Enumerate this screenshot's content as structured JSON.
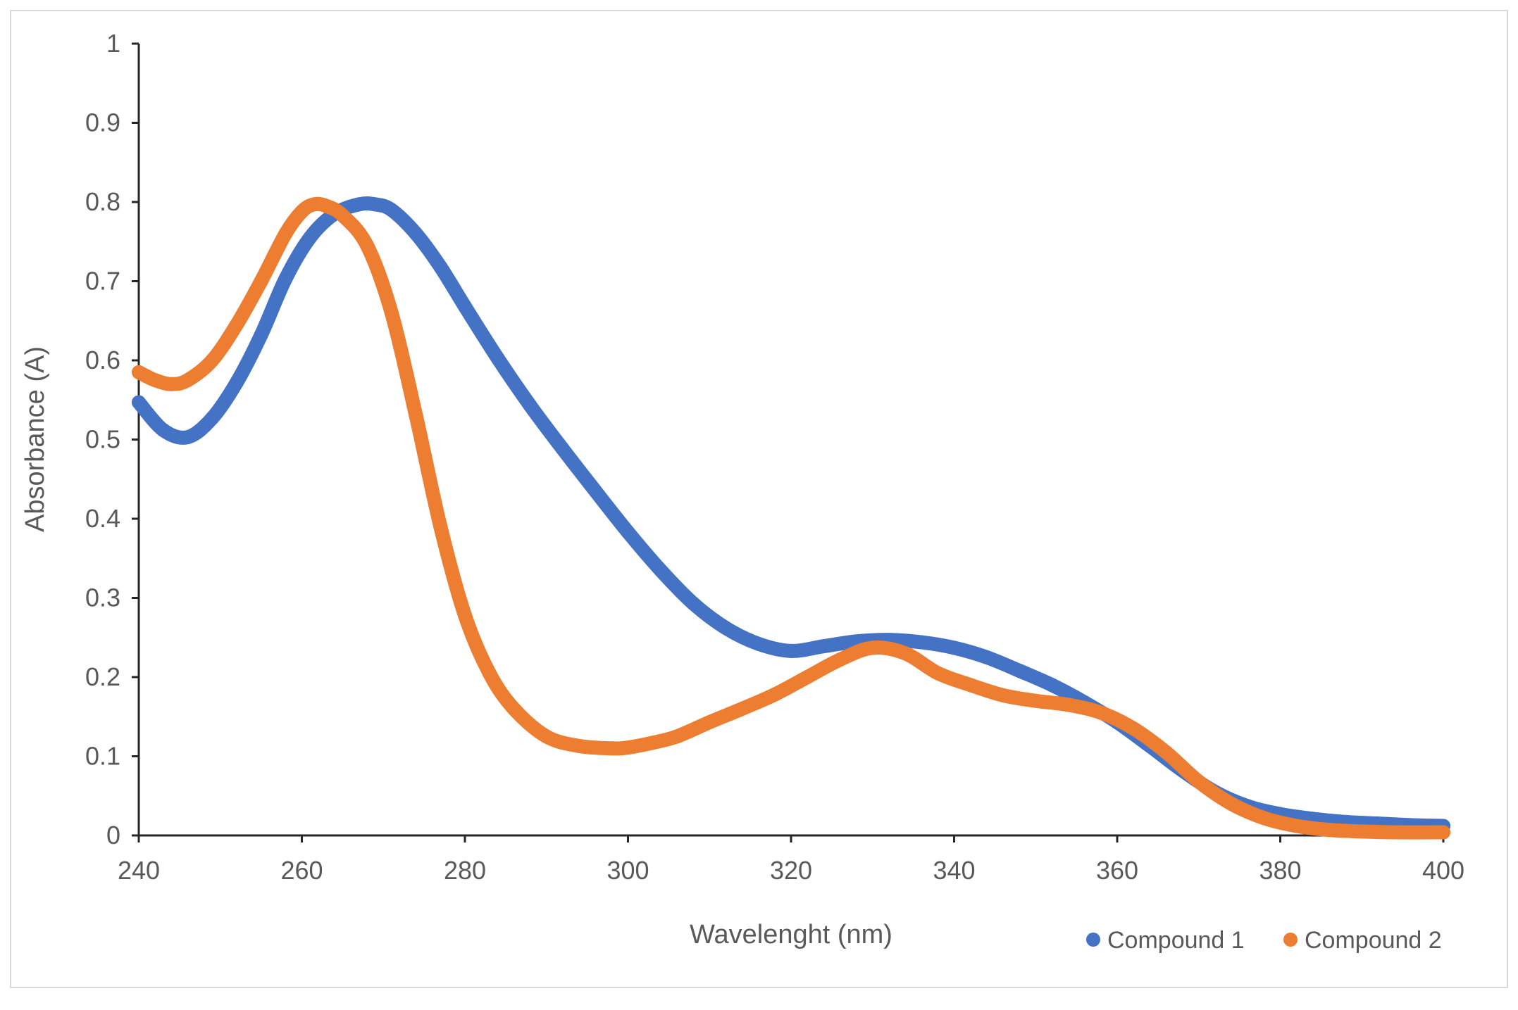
{
  "chart_data": {
    "type": "line",
    "title": "",
    "xlabel": "Wavelenght (nm)",
    "ylabel": "Absorbance (A)",
    "xlim": [
      240,
      400
    ],
    "ylim": [
      0,
      1
    ],
    "xticks": [
      240,
      260,
      280,
      300,
      320,
      340,
      360,
      380,
      400
    ],
    "yticks": [
      0,
      0.1,
      0.2,
      0.3,
      0.4,
      0.5,
      0.6,
      0.7,
      0.8,
      0.9,
      1
    ],
    "ytick_labels": [
      "0",
      "0.1",
      "0.2",
      "0.3",
      "0.4",
      "0.5",
      "0.6",
      "0.7",
      "0.8",
      "0.9",
      "1"
    ],
    "grid": false,
    "legend_position": "bottom-right",
    "series": [
      {
        "name": "Compound 1",
        "color": "#4472c4",
        "x": [
          240,
          243,
          246,
          249,
          252,
          255,
          258,
          261,
          264,
          267,
          269,
          271,
          274,
          277,
          280,
          284,
          288,
          292,
          296,
          300,
          304,
          308,
          312,
          316,
          320,
          324,
          328,
          332,
          336,
          340,
          344,
          348,
          352,
          356,
          360,
          364,
          368,
          372,
          376,
          380,
          384,
          388,
          392,
          396,
          400
        ],
        "values": [
          0.547,
          0.512,
          0.503,
          0.527,
          0.572,
          0.632,
          0.703,
          0.755,
          0.785,
          0.797,
          0.797,
          0.79,
          0.76,
          0.718,
          0.668,
          0.603,
          0.543,
          0.488,
          0.435,
          0.383,
          0.335,
          0.293,
          0.262,
          0.242,
          0.233,
          0.239,
          0.245,
          0.247,
          0.244,
          0.237,
          0.225,
          0.208,
          0.19,
          0.168,
          0.143,
          0.113,
          0.082,
          0.055,
          0.037,
          0.027,
          0.021,
          0.017,
          0.015,
          0.013,
          0.012
        ]
      },
      {
        "name": "Compound 2",
        "color": "#ed7d31",
        "x": [
          240,
          242,
          244,
          246,
          249,
          252,
          255,
          258,
          260,
          261.5,
          263,
          265,
          268,
          271,
          274,
          277,
          280,
          283,
          286,
          290,
          294,
          298,
          300,
          303,
          306,
          310,
          314,
          318,
          322,
          326,
          330,
          334,
          338,
          342,
          346,
          350,
          354,
          358,
          362,
          366,
          370,
          374,
          378,
          382,
          386,
          390,
          394,
          400
        ],
        "values": [
          0.585,
          0.575,
          0.57,
          0.575,
          0.6,
          0.645,
          0.7,
          0.76,
          0.788,
          0.797,
          0.795,
          0.783,
          0.745,
          0.66,
          0.53,
          0.39,
          0.278,
          0.205,
          0.16,
          0.125,
          0.113,
          0.11,
          0.111,
          0.117,
          0.125,
          0.143,
          0.16,
          0.178,
          0.2,
          0.222,
          0.237,
          0.23,
          0.205,
          0.19,
          0.177,
          0.17,
          0.165,
          0.155,
          0.135,
          0.105,
          0.068,
          0.04,
          0.022,
          0.012,
          0.007,
          0.005,
          0.004,
          0.004
        ]
      }
    ]
  }
}
